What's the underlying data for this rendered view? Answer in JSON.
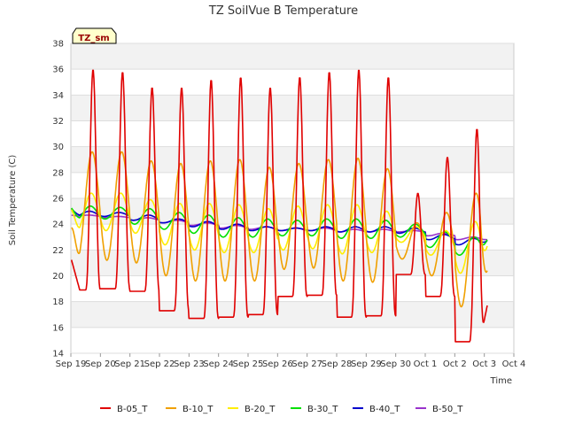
{
  "chart_data": {
    "type": "line",
    "title": "TZ SoilVue B Temperature",
    "xlabel": "Time",
    "ylabel": "Soil Temperature (C)",
    "ylim": [
      14,
      38
    ],
    "yticks": [
      "14",
      "16",
      "18",
      "20",
      "22",
      "24",
      "26",
      "28",
      "30",
      "32",
      "34",
      "36",
      "38"
    ],
    "xlim": [
      0,
      15
    ],
    "xticks": [
      "Sep 19",
      "Sep 20",
      "Sep 21",
      "Sep 22",
      "Sep 23",
      "Sep 24",
      "Sep 25",
      "Sep 26",
      "Sep 27",
      "Sep 28",
      "Sep 29",
      "Sep 30",
      "Oct 1",
      "Oct 2",
      "Oct 3",
      "Oct 4"
    ],
    "badge": "TZ_sm",
    "grid": true,
    "legend_position": "bottom",
    "series": [
      {
        "name": "B-05_T",
        "color": "#e00000",
        "daily_max": [
          36.0,
          35.8,
          34.6,
          34.6,
          35.2,
          35.4,
          34.6,
          35.4,
          35.8,
          36.0,
          35.4,
          26.4,
          29.2,
          31.4
        ],
        "daily_min": [
          18.9,
          19.0,
          18.8,
          17.3,
          16.7,
          16.8,
          17.0,
          18.4,
          18.5,
          16.8,
          16.9,
          20.1,
          18.4,
          14.9
        ],
        "start": 21.4,
        "end": 17.7
      },
      {
        "name": "B-10_T",
        "color": "#f0a000",
        "daily_max": [
          29.6,
          29.6,
          28.9,
          28.7,
          28.9,
          29.0,
          28.4,
          28.7,
          29.0,
          29.1,
          28.3,
          24.1,
          24.9,
          26.4
        ],
        "daily_min": [
          21.3,
          21.2,
          21.0,
          20.0,
          19.6,
          19.6,
          19.6,
          20.5,
          20.6,
          19.6,
          19.5,
          21.3,
          20.0,
          17.6
        ],
        "start": 23.7,
        "end": 20.4
      },
      {
        "name": "B-20_T",
        "color": "#ffee00",
        "daily_max": [
          26.4,
          26.4,
          25.9,
          25.6,
          25.6,
          25.5,
          25.2,
          25.4,
          25.5,
          25.5,
          25.0,
          23.8,
          23.5,
          24.2
        ],
        "daily_min": [
          23.4,
          23.5,
          23.3,
          22.4,
          22.0,
          21.8,
          21.8,
          22.0,
          22.1,
          21.7,
          21.8,
          22.6,
          21.6,
          20.2
        ],
        "start": 25.2,
        "end": 22.3
      },
      {
        "name": "B-30_T",
        "color": "#00e000",
        "daily_max": [
          25.4,
          25.3,
          25.2,
          24.9,
          24.7,
          24.5,
          24.4,
          24.3,
          24.4,
          24.4,
          24.3,
          24.0,
          23.4,
          23.0
        ],
        "daily_min": [
          24.3,
          24.4,
          24.0,
          23.6,
          23.3,
          23.0,
          23.0,
          23.1,
          23.1,
          22.9,
          22.9,
          23.0,
          22.2,
          21.6
        ],
        "start": 25.3,
        "end": 22.8
      },
      {
        "name": "B-40_T",
        "color": "#0000cc",
        "daily_max": [
          25.0,
          24.9,
          24.7,
          24.4,
          24.2,
          24.0,
          23.8,
          23.7,
          23.8,
          23.8,
          23.8,
          23.7,
          23.2,
          22.9
        ],
        "daily_min": [
          24.6,
          24.6,
          24.3,
          24.1,
          23.8,
          23.6,
          23.5,
          23.5,
          23.5,
          23.4,
          23.4,
          23.3,
          22.8,
          22.4
        ],
        "start": 25.2,
        "end": 22.7
      },
      {
        "name": "B-50_T",
        "color": "#9933cc",
        "daily_max": [
          24.7,
          24.6,
          24.5,
          24.3,
          24.1,
          23.9,
          23.8,
          23.7,
          23.7,
          23.6,
          23.6,
          23.5,
          23.3,
          23.0
        ],
        "daily_min": [
          24.6,
          24.5,
          24.3,
          24.1,
          23.9,
          23.7,
          23.6,
          23.5,
          23.5,
          23.4,
          23.4,
          23.4,
          23.1,
          22.8
        ],
        "start": 24.7,
        "end": 22.8
      }
    ]
  }
}
